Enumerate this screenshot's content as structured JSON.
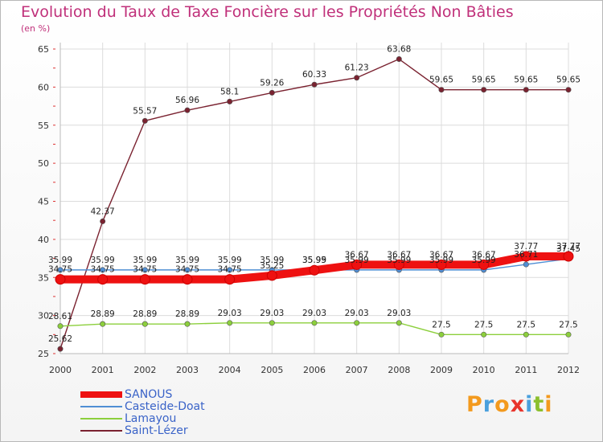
{
  "title": "Evolution du Taux de Taxe Foncière sur les Propriétés Non Bâties",
  "subtitle": "(en %)",
  "brand": {
    "letters": [
      "P",
      "r",
      "o",
      "x",
      "i",
      "t",
      "i"
    ],
    "colors": [
      "#f39a1e",
      "#4aa0dd",
      "#f39a1e",
      "#e8342c",
      "#4aa0dd",
      "#8cbf2d",
      "#f39a1e"
    ]
  },
  "chart_data": {
    "type": "line",
    "title": "Evolution du Taux de Taxe Foncière sur les Propriétés Non Bâties",
    "ylabel": "(en %)",
    "xlabel": "",
    "ylim": [
      25,
      65
    ],
    "yticks": [
      25,
      30,
      35,
      40,
      45,
      50,
      55,
      60,
      65
    ],
    "categories": [
      "2000",
      "2001",
      "2002",
      "2003",
      "2004",
      "2005",
      "2006",
      "2007",
      "2008",
      "2009",
      "2010",
      "2011",
      "2012"
    ],
    "series": [
      {
        "name": "SANOUS",
        "color": "#ee1111",
        "emphasis": true,
        "values": [
          34.75,
          34.75,
          34.75,
          34.75,
          34.75,
          35.25,
          35.95,
          36.67,
          36.67,
          36.67,
          36.67,
          37.77,
          37.77
        ],
        "labels": [
          "34.75",
          "34.75",
          "34.75",
          "34.75",
          "34.75",
          "35.25",
          "35.95",
          "36.67",
          "36.67",
          "36.67",
          "36.67",
          "37.77",
          "37.77"
        ]
      },
      {
        "name": "Casteide-Doat",
        "color": "#4f8ed4",
        "values": [
          35.99,
          35.99,
          35.99,
          35.99,
          35.99,
          35.99,
          35.99,
          35.99,
          35.99,
          35.99,
          35.99,
          36.71,
          37.45
        ],
        "labels": [
          "35.99",
          "35.99",
          "35.99",
          "35.99",
          "35.99",
          "35.99",
          "35.99",
          "35.99",
          "35.99",
          "35.99",
          "35.99",
          "36.71",
          "37.45"
        ]
      },
      {
        "name": "Lamayou",
        "color": "#8ccf3c",
        "values": [
          28.61,
          28.89,
          28.89,
          28.89,
          29.03,
          29.03,
          29.03,
          29.03,
          29.03,
          27.5,
          27.5,
          27.5,
          27.5
        ],
        "labels": [
          "28.61",
          "28.89",
          "28.89",
          "28.89",
          "29.03",
          "29.03",
          "29.03",
          "29.03",
          "29.03",
          "27.5",
          "27.5",
          "27.5",
          "27.5"
        ]
      },
      {
        "name": "Saint-Lézer",
        "color": "#7a2230",
        "values": [
          25.62,
          42.37,
          55.57,
          56.96,
          58.1,
          59.26,
          60.33,
          61.23,
          63.68,
          59.65,
          59.65,
          59.65,
          59.65
        ],
        "labels": [
          "25.62",
          "42.37",
          "55.57",
          "56.96",
          "58.1",
          "59.26",
          "60.33",
          "61.23",
          "63.68",
          "59.65",
          "59.65",
          "59.65",
          "59.65"
        ]
      }
    ]
  }
}
